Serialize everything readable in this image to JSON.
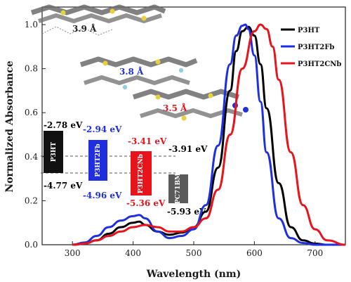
{
  "chart_data": {
    "type": "line",
    "xlabel": "Wavelength (nm)",
    "ylabel": "Normalized Absorbance",
    "xlim": [
      250,
      750
    ],
    "ylim": [
      0,
      1.08
    ],
    "xticks": [
      300,
      400,
      500,
      600,
      700
    ],
    "yticks": [
      0.0,
      0.2,
      0.4,
      0.6,
      0.8,
      1.0
    ],
    "legend": {
      "position": "top-right"
    },
    "series": [
      {
        "name": "P3HT",
        "color": "#000000",
        "x": [
          300,
          320,
          340,
          360,
          380,
          400,
          410,
          420,
          440,
          460,
          480,
          500,
          520,
          540,
          560,
          570,
          580,
          590,
          600,
          610,
          620,
          640,
          660,
          680,
          700,
          720,
          750
        ],
        "y": [
          0.0,
          0.005,
          0.02,
          0.05,
          0.08,
          0.1,
          0.105,
          0.09,
          0.06,
          0.045,
          0.055,
          0.08,
          0.15,
          0.35,
          0.7,
          0.88,
          0.97,
          0.99,
          0.95,
          0.82,
          0.62,
          0.28,
          0.08,
          0.02,
          0.005,
          0.0,
          0.0
        ]
      },
      {
        "name": "P3HT2Fb",
        "color": "#1f2fe0",
        "x": [
          300,
          320,
          340,
          360,
          380,
          400,
          410,
          420,
          440,
          460,
          480,
          500,
          520,
          540,
          560,
          570,
          580,
          585,
          590,
          600,
          610,
          620,
          640,
          660,
          680,
          700,
          750
        ],
        "y": [
          0.0,
          0.01,
          0.04,
          0.08,
          0.11,
          0.13,
          0.135,
          0.12,
          0.06,
          0.03,
          0.04,
          0.07,
          0.18,
          0.45,
          0.82,
          0.95,
          0.995,
          1.0,
          0.98,
          0.86,
          0.65,
          0.42,
          0.12,
          0.03,
          0.008,
          0.0,
          0.0
        ]
      },
      {
        "name": "P3HT2CNb",
        "color": "#e8141b",
        "x": [
          300,
          320,
          340,
          360,
          380,
          400,
          420,
          440,
          460,
          480,
          500,
          520,
          540,
          560,
          580,
          600,
          610,
          620,
          630,
          640,
          660,
          680,
          700,
          720,
          750
        ],
        "y": [
          0.0,
          0.005,
          0.02,
          0.04,
          0.06,
          0.08,
          0.09,
          0.08,
          0.06,
          0.06,
          0.08,
          0.12,
          0.25,
          0.5,
          0.8,
          0.97,
          1.0,
          0.98,
          0.9,
          0.75,
          0.42,
          0.18,
          0.07,
          0.02,
          0.0
        ]
      }
    ],
    "annotations": {
      "stacking": [
        {
          "label": "3.9 Å",
          "color": "#222222"
        },
        {
          "label": "3.8 Å",
          "color": "#1f2fe0"
        },
        {
          "label": "3.5 Å",
          "color": "#e8141b"
        }
      ],
      "energy_levels": [
        {
          "name": "P3HT",
          "lumo": "-2.78 eV",
          "homo": "-4.77 eV",
          "color": "#000000",
          "text_color": "#000000"
        },
        {
          "name": "P3HT2Fb",
          "lumo": "-2.94 eV",
          "homo": "-4.96 eV",
          "color": "#1f2fe0",
          "text_color": "#1f2fe0"
        },
        {
          "name": "P3HT2CNb",
          "lumo": "-3.41 eV",
          "homo": "-5.36 eV",
          "color": "#e8141b",
          "text_color": "#e8141b"
        },
        {
          "name": "PC71BM",
          "lumo": "-3.91 eV",
          "homo": "-5.93 eV",
          "color": "#5a5a5a",
          "text_color": "#000000"
        }
      ]
    }
  }
}
